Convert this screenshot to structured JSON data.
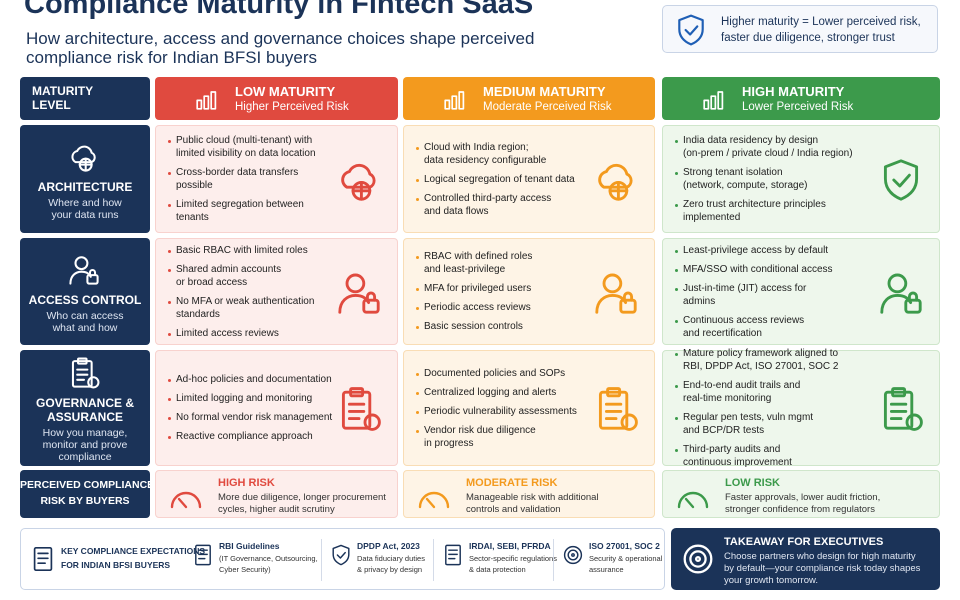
{
  "header": {
    "title": "Compliance Maturity in Fintech SaaS",
    "subtitle": [
      "How architecture, access and governance choices shape perceived",
      "compliance risk for Indian BFSI buyers"
    ],
    "callout": [
      "Higher maturity = Lower perceived risk,",
      "faster due diligence, stronger trust"
    ]
  },
  "matrix": {
    "corner": [
      "MATURITY",
      "LEVEL"
    ],
    "levels": [
      {
        "name": "LOW MATURITY",
        "sub": "Higher Perceived Risk"
      },
      {
        "name": "MEDIUM MATURITY",
        "sub": "Moderate Perceived Risk"
      },
      {
        "name": "HIGH MATURITY",
        "sub": "Lower Perceived Risk"
      }
    ],
    "rows": [
      {
        "name": [
          "ARCHITECTURE"
        ],
        "desc": [
          "Where and how",
          "your data runs"
        ],
        "cells": [
          [
            [
              "Public cloud (multi-tenant) with",
              "limited visibility on data location"
            ],
            [
              "Cross-border data transfers",
              "possible"
            ],
            [
              "Limited segregation between",
              "tenants"
            ]
          ],
          [
            [
              "Cloud with India region;",
              "data residency configurable"
            ],
            [
              "Logical segregation of tenant data"
            ],
            [
              "Controlled third-party access",
              "and data flows"
            ]
          ],
          [
            [
              "India data residency by design",
              "(on-prem / private cloud / India region)"
            ],
            [
              "Strong tenant isolation",
              "(network, compute, storage)"
            ],
            [
              "Zero trust architecture principles",
              "implemented"
            ]
          ]
        ]
      },
      {
        "name": [
          "ACCESS CONTROL"
        ],
        "desc": [
          "Who can access",
          "what and how"
        ],
        "cells": [
          [
            [
              "Basic RBAC with limited roles"
            ],
            [
              "Shared admin accounts",
              "or broad access"
            ],
            [
              "No MFA or weak authentication",
              "standards"
            ],
            [
              "Limited access reviews"
            ]
          ],
          [
            [
              "RBAC with defined roles",
              "and least-privilege"
            ],
            [
              "MFA for privileged users"
            ],
            [
              "Periodic access reviews"
            ],
            [
              "Basic session controls"
            ]
          ],
          [
            [
              "Least-privilege access by default"
            ],
            [
              "MFA/SSO with conditional access"
            ],
            [
              "Just-in-time (JIT) access for",
              "admins"
            ],
            [
              "Continuous access reviews",
              "and recertification"
            ]
          ]
        ]
      },
      {
        "name": [
          "GOVERNANCE &",
          "ASSURANCE"
        ],
        "desc": [
          "How you manage,",
          "monitor and prove",
          "compliance"
        ],
        "cells": [
          [
            [
              "Ad-hoc policies and documentation"
            ],
            [
              "Limited logging and monitoring"
            ],
            [
              "No formal vendor risk management"
            ],
            [
              "Reactive compliance approach"
            ]
          ],
          [
            [
              "Documented policies and SOPs"
            ],
            [
              "Centralized logging and alerts"
            ],
            [
              "Periodic vulnerability assessments"
            ],
            [
              "Vendor risk due diligence",
              "in progress"
            ]
          ],
          [
            [
              "Mature policy framework aligned to",
              "RBI, DPDP Act, ISO 27001, SOC 2"
            ],
            [
              "End-to-end audit trails and",
              "real-time monitoring"
            ],
            [
              "Regular pen tests, vuln mgmt",
              "and BCP/DR tests"
            ],
            [
              "Third-party audits and",
              "continuous improvement"
            ]
          ]
        ]
      }
    ],
    "risk": {
      "name": [
        "PERCEIVED COMPLIANCE",
        "RISK BY BUYERS"
      ],
      "cells": [
        {
          "level": "HIGH RISK",
          "text": [
            "More due diligence, longer procurement",
            "cycles, higher audit scrutiny"
          ]
        },
        {
          "level": "MODERATE RISK",
          "text": [
            "Manageable risk with additional",
            "controls and validation"
          ]
        },
        {
          "level": "LOW RISK",
          "text": [
            "Faster approvals, lower audit friction,",
            "stronger confidence from regulators"
          ]
        }
      ]
    }
  },
  "footer": {
    "expectations": {
      "title": [
        "KEY COMPLIANCE EXPECTATIONS",
        "FOR INDIAN BFSI BUYERS"
      ],
      "items": [
        {
          "title": "RBI Guidelines",
          "text": [
            "(IT Governance, Outsourcing,",
            "Cyber Security)"
          ]
        },
        {
          "title": "DPDP Act, 2023",
          "text": [
            "Data fiduciary duties",
            "& privacy by design"
          ]
        },
        {
          "title": "IRDAI, SEBI, PFRDA",
          "text": [
            "Sector-specific regulations",
            "& data protection"
          ]
        },
        {
          "title": "ISO 27001, SOC 2",
          "text": [
            "Security & operational",
            "assurance"
          ]
        }
      ]
    },
    "takeaway": {
      "title": "TAKEAWAY FOR EXECUTIVES",
      "text": [
        "Choose partners who design for high maturity",
        "by default—your compliance risk today shapes",
        "your growth tomorrow."
      ]
    }
  }
}
